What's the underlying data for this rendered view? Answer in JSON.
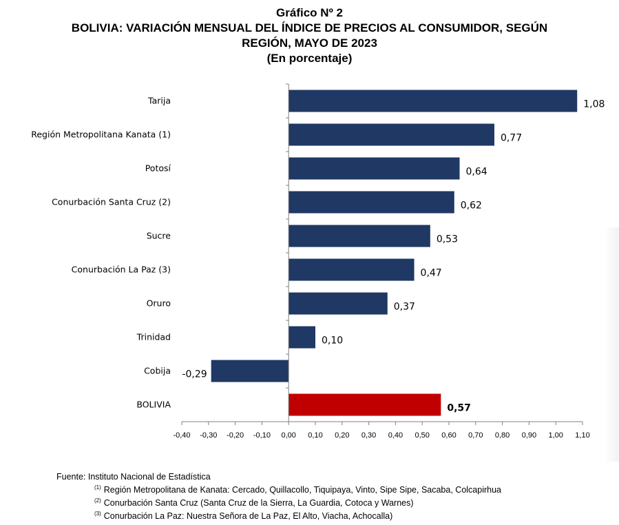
{
  "header": {
    "title_line1": "Gráfico Nº 2",
    "title_line2": "BOLIVIA: VARIACIÓN MENSUAL DEL ÍNDICE DE PRECIOS AL CONSUMIDOR, SEGÚN",
    "title_line3": "REGIÓN, MAYO DE 2023",
    "title_line4": "(En porcentaje)"
  },
  "chart_data": {
    "type": "bar",
    "orientation": "horizontal",
    "categories": [
      "Tarija",
      "Región Metropolitana Kanata (1)",
      "Potosí",
      "Conurbación Santa Cruz (2)",
      "Sucre",
      "Conurbación La Paz (3)",
      "Oruro",
      "Trinidad",
      "Cobija",
      "BOLIVIA"
    ],
    "values": [
      1.08,
      0.77,
      0.64,
      0.62,
      0.53,
      0.47,
      0.37,
      0.1,
      -0.29,
      0.57
    ],
    "value_labels": [
      "1,08",
      "0,77",
      "0,64",
      "0,62",
      "0,53",
      "0,47",
      "0,37",
      "0,10",
      "-0,29",
      "0,57"
    ],
    "colors": [
      "#1f3864",
      "#1f3864",
      "#1f3864",
      "#1f3864",
      "#1f3864",
      "#1f3864",
      "#1f3864",
      "#1f3864",
      "#1f3864",
      "#c00000"
    ],
    "xlim": [
      -0.4,
      1.1
    ],
    "x_ticks": [
      -0.4,
      -0.3,
      -0.2,
      -0.1,
      0.0,
      0.1,
      0.2,
      0.3,
      0.4,
      0.5,
      0.6,
      0.7,
      0.8,
      0.9,
      1.0,
      1.1
    ],
    "x_tick_labels": [
      "-0,40",
      "-0,30",
      "-0,20",
      "-0,10",
      "0,00",
      "0,10",
      "0,20",
      "0,30",
      "0,40",
      "0,50",
      "0,60",
      "0,70",
      "0,80",
      "0,90",
      "1,00",
      "1,10"
    ],
    "grid": false,
    "legend": "none"
  },
  "notes": {
    "source": "Fuente: Instituto Nacional de Estadística",
    "note1_marker": "(1)",
    "note1": "Región Metropolitana de Kanata: Cercado, Quillacollo, Tiquipaya, Vinto, Sipe Sipe, Sacaba, Colcapirhua",
    "note2_marker": "(2)",
    "note2": "Conurbación Santa Cruz (Santa Cruz de la Sierra, La Guardia, Cotoca y Warnes)",
    "note3_marker": "(3)",
    "note3": "Conurbación La Paz: Nuestra Señora de La Paz, El Alto, Viacha, Achocalla)"
  }
}
